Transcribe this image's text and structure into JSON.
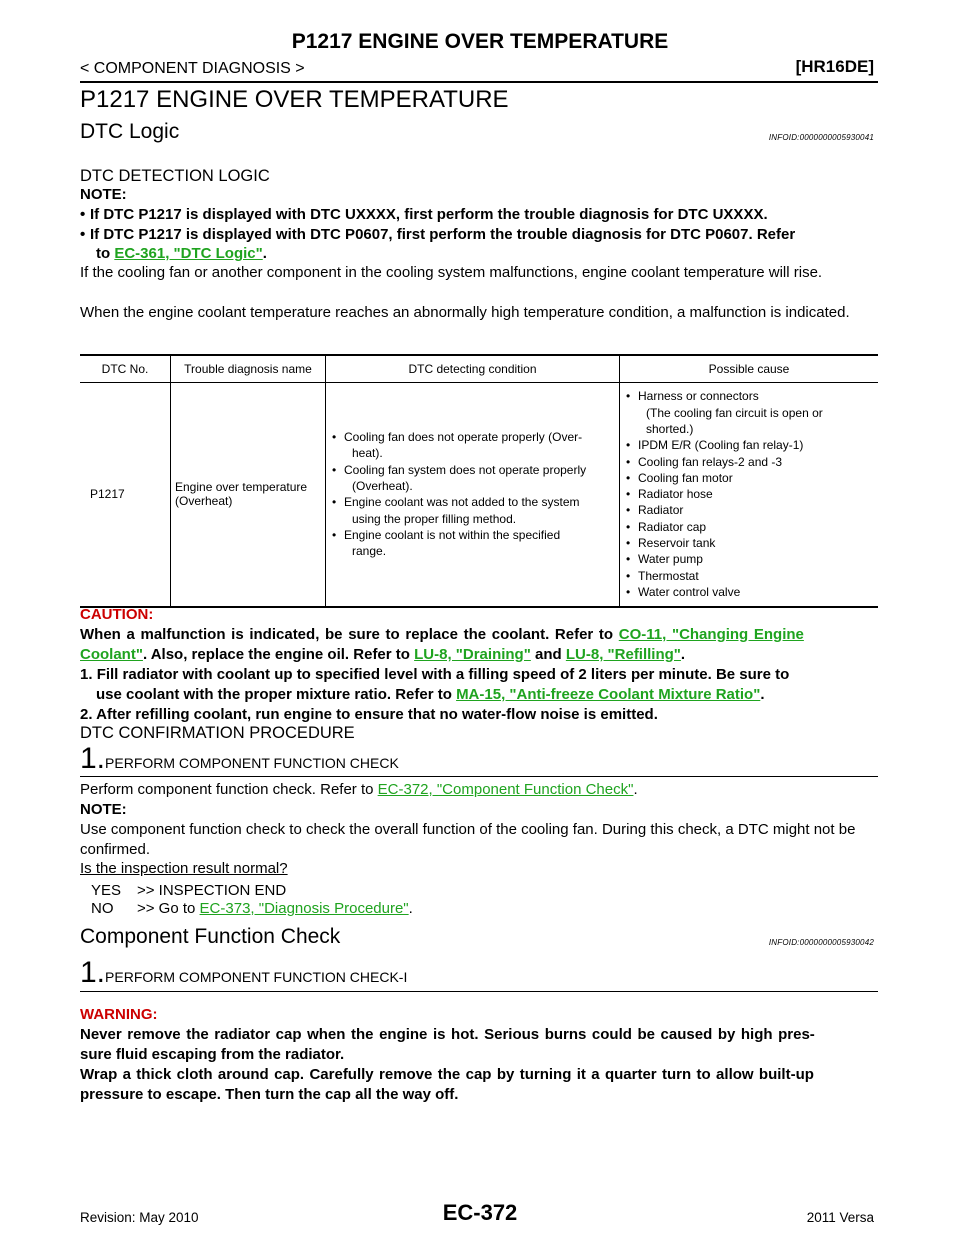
{
  "header": {
    "title": "P1217 ENGINE OVER TEMPERATURE",
    "breadcrumb": "< COMPONENT DIAGNOSIS >",
    "model": "[HR16DE]"
  },
  "section_title": "P1217 ENGINE OVER TEMPERATURE",
  "dtc_logic": {
    "heading": "DTC Logic",
    "info_id": "INFOID:0000000005930041",
    "subheading": "DTC DETECTION LOGIC",
    "note_label": "NOTE:",
    "note1": "If DTC P1217 is displayed with DTC UXXXX, first perform the trouble diagnosis for DTC UXXXX.",
    "note2_a": "If DTC P1217 is displayed with DTC P0607, first perform the trouble diagnosis for DTC P0607. Refer",
    "note2_b": "to ",
    "note2_link": "EC-361, \"DTC Logic\"",
    "note2_end": ".",
    "para1": "If the cooling fan or another component in the cooling system malfunctions, engine coolant temperature will rise.",
    "para2": "When the engine coolant temperature reaches an abnormally high temperature condition, a malfunction is indicated."
  },
  "table": {
    "headers": [
      "DTC No.",
      "Trouble diagnosis name",
      "DTC detecting condition",
      "Possible cause"
    ],
    "dtc_no": "P1217",
    "name_line1": "Engine over temperature",
    "name_line2": "(Overheat)",
    "conditions": [
      [
        "Cooling fan does not operate properly (Over-",
        "heat)."
      ],
      [
        "Cooling fan system does not operate properly",
        "(Overheat)."
      ],
      [
        "Engine coolant was not added to the system",
        "using the proper filling method."
      ],
      [
        "Engine coolant is not within the specified",
        "range."
      ]
    ],
    "causes": [
      [
        "Harness or connectors",
        "(The cooling fan circuit is open or",
        "shorted.)"
      ],
      [
        "IPDM E/R (Cooling fan relay-1)"
      ],
      [
        "Cooling fan relays-2 and -3"
      ],
      [
        "Cooling fan motor"
      ],
      [
        "Radiator hose"
      ],
      [
        "Radiator"
      ],
      [
        "Radiator cap"
      ],
      [
        "Reservoir tank"
      ],
      [
        "Water pump"
      ],
      [
        "Thermostat"
      ],
      [
        "Water control valve"
      ]
    ]
  },
  "caution": {
    "label": "CAUTION:",
    "line1_a": "When a malfunction is indicated, be sure to replace the coolant. Refer to ",
    "line1_link": "CO-11, \"Changing Engine",
    "line2_link": "Coolant\"",
    "line2_b": ". Also, replace the engine oil. Refer to ",
    "line2_link2": "LU-8, \"Draining\"",
    "line2_c": " and ",
    "line2_link3": "LU-8, \"Refilling\"",
    "line2_d": ".",
    "step1_num": "1.",
    "step1_a": "Fill radiator with coolant up to specified level with a filling speed of 2 liters per minute. Be sure to",
    "step1_b": "use coolant with the proper mixture ratio. Refer to ",
    "step1_link": "MA-15, \"Anti-freeze Coolant Mixture Ratio\"",
    "step1_end": ".",
    "step2_num": "2.",
    "step2": "After refilling coolant, run engine to ensure that no water-flow noise is emitted."
  },
  "confirmation": {
    "heading": "DTC CONFIRMATION PROCEDURE",
    "step_num": "1.",
    "step_title": "PERFORM COMPONENT FUNCTION CHECK",
    "perform_a": "Perform component function check. Refer to ",
    "perform_link": "EC-372, \"Component Function Check\"",
    "perform_end": ".",
    "note_label": "NOTE:",
    "note": "Use component function check to check the overall function of the cooling fan. During this check, a DTC might not be confirmed.",
    "question": "Is the inspection result normal?",
    "yes_label": "YES",
    "yes_text": ">> INSPECTION END",
    "no_label": "NO",
    "no_text": ">> Go to ",
    "no_link": "EC-373, \"Diagnosis Procedure\"",
    "no_end": "."
  },
  "function_check": {
    "heading": "Component Function Check",
    "info_id": "INFOID:0000000005930042",
    "step_num": "1.",
    "step_title": "PERFORM COMPONENT FUNCTION CHECK-I",
    "warning_label": "WARNING:",
    "warning1": "Never remove the radiator cap when the engine is hot. Serious burns could be caused by high pres-",
    "warning2": "sure fluid escaping from the radiator.",
    "warning3": "Wrap a thick cloth around cap. Carefully remove the cap by turning it a quarter turn to allow built-up",
    "warning4": "pressure to escape. Then turn the cap all the way off."
  },
  "footer": {
    "revision": "Revision: May 2010",
    "page": "EC-372",
    "model_year": "2011 Versa"
  }
}
